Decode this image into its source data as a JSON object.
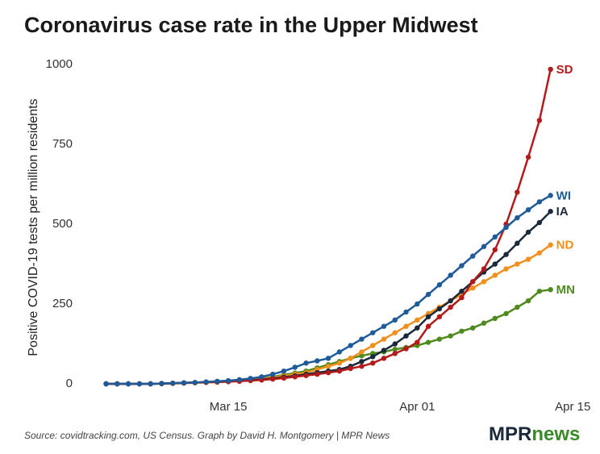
{
  "chart_data": {
    "type": "line",
    "title": "Coronavirus case rate in the Upper Midwest",
    "ylabel": "Positive COVID-19 tests per million residents",
    "source": "Source: covidtracking.com, US Census. Graph by David H. Montgomery | MPR News",
    "logo": {
      "left": "MPR",
      "right": "news"
    },
    "x": [
      "Mar 04",
      "Mar 05",
      "Mar 06",
      "Mar 07",
      "Mar 08",
      "Mar 09",
      "Mar 10",
      "Mar 11",
      "Mar 12",
      "Mar 13",
      "Mar 14",
      "Mar 15",
      "Mar 16",
      "Mar 17",
      "Mar 18",
      "Mar 19",
      "Mar 20",
      "Mar 21",
      "Mar 22",
      "Mar 23",
      "Mar 24",
      "Mar 25",
      "Mar 26",
      "Mar 27",
      "Mar 28",
      "Mar 29",
      "Mar 30",
      "Mar 31",
      "Apr 01",
      "Apr 02",
      "Apr 03",
      "Apr 04",
      "Apr 05",
      "Apr 06",
      "Apr 07",
      "Apr 08",
      "Apr 09",
      "Apr 10",
      "Apr 11",
      "Apr 12",
      "Apr 13"
    ],
    "xlim": [
      "Mar 02",
      "Apr 16"
    ],
    "xticks": [
      "Mar 15",
      "Apr 01",
      "Apr 15"
    ],
    "ylim": [
      0,
      1000
    ],
    "yticks": [
      0,
      250,
      500,
      750,
      1000
    ],
    "series": [
      {
        "name": "MN",
        "color": "#4e8a1e",
        "values": [
          0,
          0,
          0,
          0,
          0,
          1,
          2,
          3,
          4,
          5,
          6,
          8,
          10,
          13,
          17,
          22,
          28,
          34,
          40,
          50,
          60,
          70,
          80,
          88,
          95,
          100,
          108,
          114,
          120,
          130,
          140,
          150,
          165,
          175,
          190,
          205,
          220,
          240,
          260,
          290,
          295
        ]
      },
      {
        "name": "ND",
        "color": "#f28e1c",
        "values": [
          0,
          0,
          0,
          0,
          0,
          0,
          1,
          2,
          3,
          4,
          5,
          7,
          9,
          12,
          16,
          20,
          25,
          30,
          35,
          45,
          55,
          65,
          80,
          100,
          120,
          140,
          160,
          180,
          200,
          220,
          240,
          260,
          280,
          300,
          320,
          340,
          360,
          375,
          390,
          410,
          435
        ]
      },
      {
        "name": "IA",
        "color": "#1a2a3a",
        "values": [
          0,
          0,
          0,
          0,
          0,
          1,
          2,
          3,
          4,
          5,
          6,
          7,
          9,
          11,
          14,
          17,
          21,
          25,
          30,
          35,
          40,
          45,
          55,
          70,
          85,
          105,
          125,
          150,
          175,
          210,
          235,
          260,
          290,
          320,
          350,
          375,
          405,
          440,
          475,
          505,
          540
        ]
      },
      {
        "name": "SD",
        "color": "#b31b1b",
        "values": [
          0,
          0,
          0,
          0,
          0,
          1,
          2,
          3,
          4,
          5,
          6,
          7,
          8,
          10,
          12,
          15,
          18,
          22,
          26,
          30,
          35,
          40,
          48,
          55,
          65,
          80,
          95,
          110,
          130,
          180,
          210,
          240,
          270,
          320,
          360,
          420,
          500,
          600,
          710,
          825,
          985
        ]
      },
      {
        "name": "WI",
        "color": "#1f5b99",
        "values": [
          0,
          0,
          0,
          0,
          0,
          1,
          2,
          3,
          4,
          6,
          8,
          10,
          13,
          17,
          22,
          30,
          40,
          52,
          65,
          72,
          80,
          100,
          120,
          140,
          160,
          180,
          200,
          225,
          250,
          280,
          310,
          340,
          370,
          400,
          430,
          460,
          490,
          520,
          545,
          570,
          590
        ]
      }
    ]
  }
}
